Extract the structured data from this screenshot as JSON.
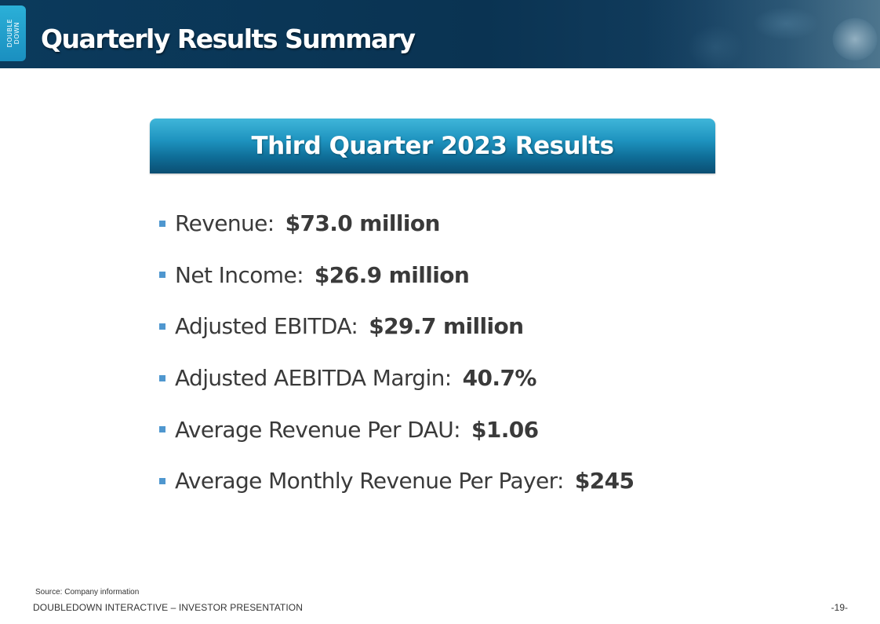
{
  "header": {
    "logo_text": "DOUBLE\nDOWN",
    "title": "Quarterly Results Summary"
  },
  "banner": {
    "title": "Third Quarter 2023 Results"
  },
  "bullets": [
    {
      "label": "Revenue:",
      "value": "$73.0 million"
    },
    {
      "label": "Net Income:",
      "value": "$26.9 million"
    },
    {
      "label": "Adjusted EBITDA:",
      "value": "$29.7 million"
    },
    {
      "label": "Adjusted AEBITDA Margin:",
      "value": "40.7%"
    },
    {
      "label": "Average Revenue Per DAU:",
      "value": "$1.06"
    },
    {
      "label": "Average Monthly Revenue Per Payer:",
      "value": "$245"
    }
  ],
  "footer": {
    "source": "Source: Company information",
    "company": "DOUBLEDOWN INTERACTIVE – INVESTOR PRESENTATION",
    "page_number": "-19-"
  },
  "colors": {
    "header_bg": "#0b3a5c",
    "logo_tab": "#2bb0d8",
    "banner": "#1e93bf",
    "bullet_marker": "#4f97cf",
    "text": "#3a3a3a"
  }
}
